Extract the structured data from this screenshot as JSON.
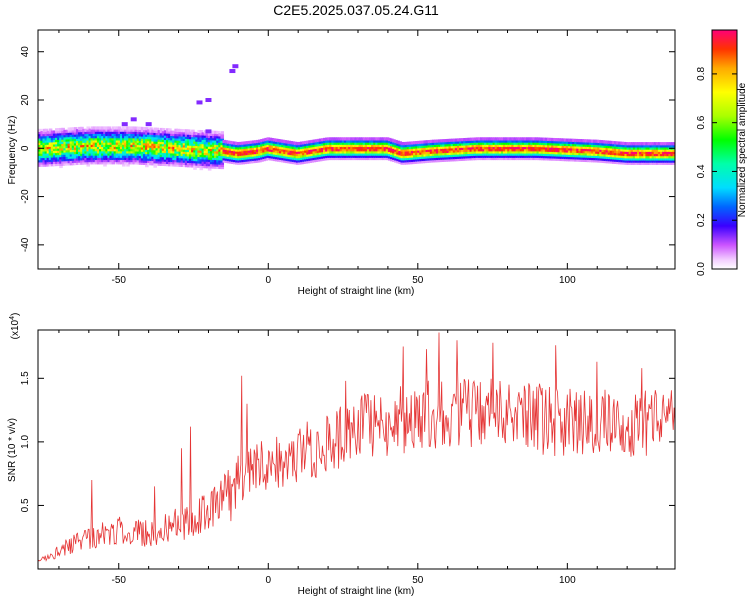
{
  "title": "C2E5.2025.037.05.24.G11",
  "chart_data": [
    {
      "type": "heatmap",
      "xlabel": "Height of straight line (km)",
      "ylabel": "Frequency (Hz)",
      "xlim": [
        -77,
        136
      ],
      "ylim": [
        -50,
        49
      ],
      "xticks": [
        -50,
        0,
        50,
        100
      ],
      "xtick_labels": [
        "-50",
        "0",
        "50",
        "100"
      ],
      "yticks": [
        -40,
        -20,
        0,
        20,
        40
      ],
      "ytick_labels": [
        "-40",
        "-20",
        "0",
        "20",
        "40"
      ],
      "colorbar": {
        "label": "Normalized spectral amplitude",
        "range": [
          0,
          0.98
        ],
        "ticks": [
          0.0,
          0.2,
          0.4,
          0.6,
          0.8
        ],
        "tick_labels": [
          "0.0",
          "0.2",
          "0.4",
          "0.6",
          "0.8"
        ]
      },
      "ridge_points": [
        {
          "x": -75,
          "f": 0
        },
        {
          "x": -60,
          "f": 1
        },
        {
          "x": -45,
          "f": 1
        },
        {
          "x": -30,
          "f": 0
        },
        {
          "x": -15,
          "f": -1
        },
        {
          "x": -10,
          "f": -2
        },
        {
          "x": -3,
          "f": -1
        },
        {
          "x": 0,
          "f": 0
        },
        {
          "x": 5,
          "f": -1
        },
        {
          "x": 10,
          "f": -2
        },
        {
          "x": 20,
          "f": 0
        },
        {
          "x": 40,
          "f": 0
        },
        {
          "x": 45,
          "f": -2
        },
        {
          "x": 55,
          "f": -1
        },
        {
          "x": 70,
          "f": 0
        },
        {
          "x": 90,
          "f": 0
        },
        {
          "x": 110,
          "f": -1
        },
        {
          "x": 120,
          "f": -2
        },
        {
          "x": 135,
          "f": -2
        }
      ],
      "outliers": [
        {
          "x": -48,
          "f": 10
        },
        {
          "x": -45,
          "f": 12
        },
        {
          "x": -40,
          "f": 10
        },
        {
          "x": -23,
          "f": 19
        },
        {
          "x": -20,
          "f": 20
        },
        {
          "x": -20,
          "f": 7
        },
        {
          "x": -12,
          "f": 32
        },
        {
          "x": -11,
          "f": 34
        }
      ]
    },
    {
      "type": "line",
      "xlabel": "Height of straight line (km)",
      "ylabel": "SNR (10 * v/v)",
      "scale_note": "(x10",
      "scale_exponent": "4",
      "xlim": [
        -77,
        136
      ],
      "ylim": [
        0,
        1.88
      ],
      "xticks": [
        -50,
        0,
        50,
        100
      ],
      "xtick_labels": [
        "-50",
        "0",
        "50",
        "100"
      ],
      "yticks": [
        0.5,
        1.0,
        1.5
      ],
      "ytick_labels": [
        "0.5",
        "1.0",
        "1.5"
      ],
      "color": "#e53535",
      "trend": [
        {
          "x": -77,
          "y": 0.05
        },
        {
          "x": -70,
          "y": 0.15
        },
        {
          "x": -60,
          "y": 0.25
        },
        {
          "x": -50,
          "y": 0.3
        },
        {
          "x": -40,
          "y": 0.28
        },
        {
          "x": -30,
          "y": 0.35
        },
        {
          "x": -20,
          "y": 0.45
        },
        {
          "x": -15,
          "y": 0.55
        },
        {
          "x": -10,
          "y": 0.65
        },
        {
          "x": -5,
          "y": 0.85
        },
        {
          "x": 0,
          "y": 0.82
        },
        {
          "x": 10,
          "y": 0.9
        },
        {
          "x": 20,
          "y": 0.98
        },
        {
          "x": 30,
          "y": 1.1
        },
        {
          "x": 40,
          "y": 1.15
        },
        {
          "x": 50,
          "y": 1.2
        },
        {
          "x": 60,
          "y": 1.25
        },
        {
          "x": 70,
          "y": 1.22
        },
        {
          "x": 80,
          "y": 1.2
        },
        {
          "x": 90,
          "y": 1.18
        },
        {
          "x": 100,
          "y": 1.15
        },
        {
          "x": 110,
          "y": 1.15
        },
        {
          "x": 120,
          "y": 1.12
        },
        {
          "x": 130,
          "y": 1.15
        },
        {
          "x": 136,
          "y": 1.15
        }
      ],
      "peaks": [
        {
          "x": -59,
          "y": 0.7
        },
        {
          "x": -38,
          "y": 0.65
        },
        {
          "x": -29,
          "y": 0.95
        },
        {
          "x": -26,
          "y": 1.12
        },
        {
          "x": -9,
          "y": 1.52
        },
        {
          "x": -7,
          "y": 1.3
        },
        {
          "x": 26,
          "y": 1.48
        },
        {
          "x": 45,
          "y": 1.75
        },
        {
          "x": 53,
          "y": 1.73
        },
        {
          "x": 57,
          "y": 1.86
        },
        {
          "x": 63,
          "y": 1.8
        },
        {
          "x": 75,
          "y": 1.78
        },
        {
          "x": 96,
          "y": 1.76
        },
        {
          "x": 110,
          "y": 1.63
        },
        {
          "x": 125,
          "y": 1.58
        }
      ]
    }
  ]
}
